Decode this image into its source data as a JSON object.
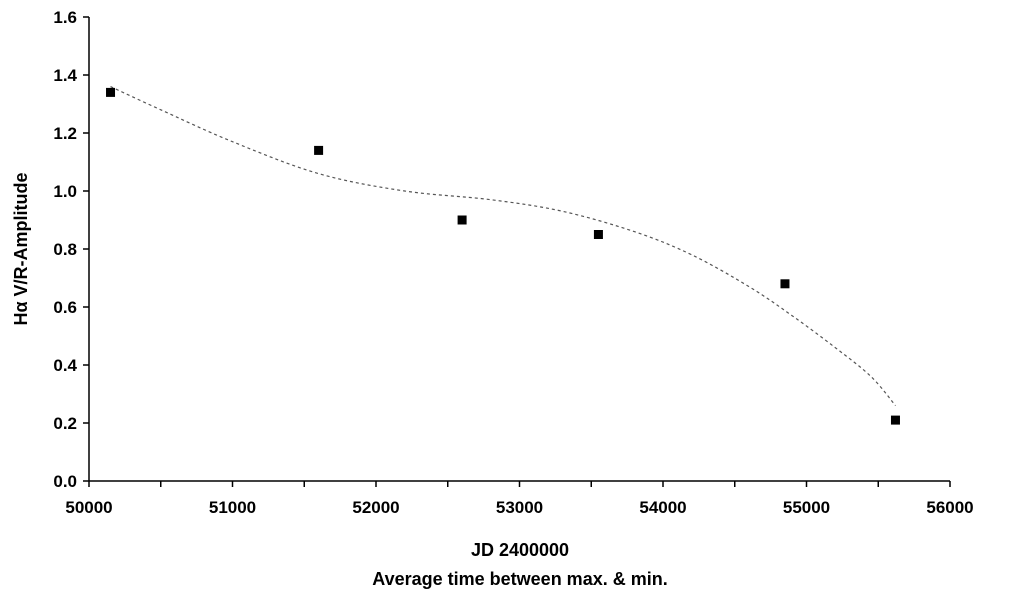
{
  "chart_data": {
    "type": "scatter",
    "xlabel": "JD 2400000",
    "xsublabel": "Average time between max. & min.",
    "ylabel": "Hα V/R-Amplitude",
    "xlim": [
      50000,
      56000
    ],
    "ylim": [
      0.0,
      1.6
    ],
    "xticks": [
      "50000",
      "51000",
      "52000",
      "53000",
      "54000",
      "55000",
      "56000"
    ],
    "yticks": [
      "0.0",
      "0.2",
      "0.4",
      "0.6",
      "0.8",
      "1.0",
      "1.2",
      "1.4",
      "1.6"
    ],
    "grid": false,
    "legend": "none",
    "series": [
      {
        "marker": "square",
        "color": "#000000",
        "x": [
          50150,
          51600,
          52600,
          53550,
          54850,
          55620
        ],
        "y": [
          1.34,
          1.14,
          0.9,
          0.85,
          0.68,
          0.21
        ]
      }
    ],
    "trendline": {
      "style": "dotted",
      "color": "#555555",
      "x": [
        50150,
        50500,
        51000,
        51600,
        52200,
        52800,
        53300,
        53800,
        54200,
        54600,
        54900,
        55200,
        55450,
        55620
      ],
      "y": [
        1.36,
        1.28,
        1.17,
        1.06,
        1.0,
        0.97,
        0.93,
        0.86,
        0.78,
        0.67,
        0.57,
        0.46,
        0.36,
        0.26
      ]
    }
  }
}
